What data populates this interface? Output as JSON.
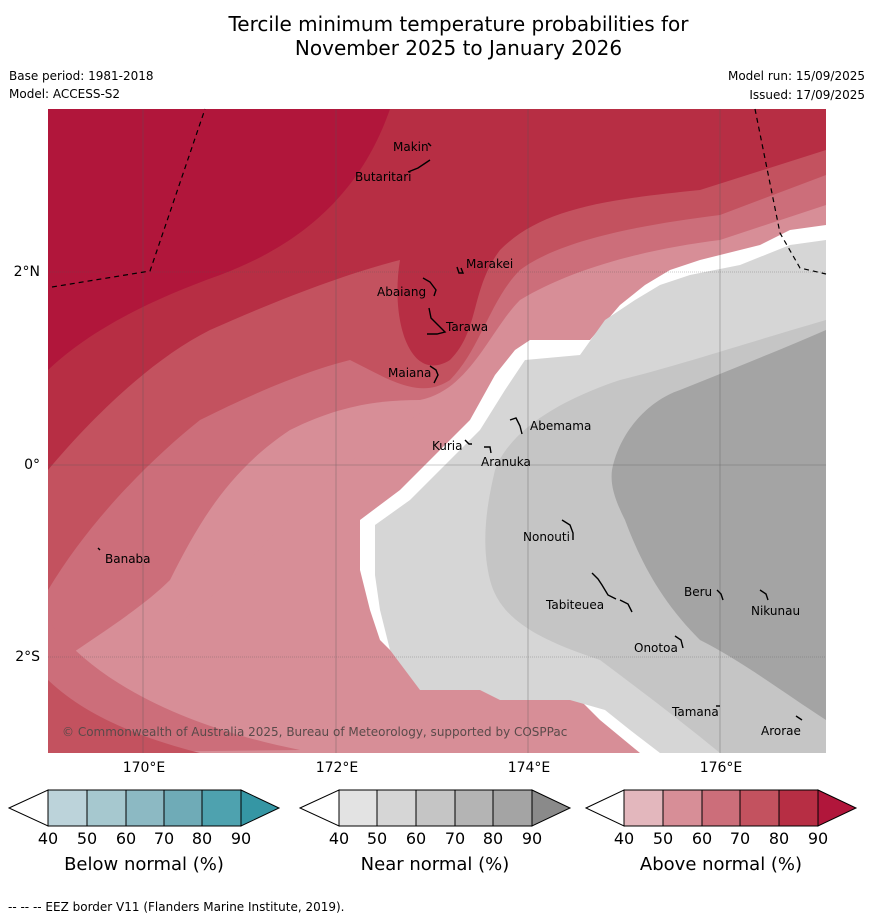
{
  "title_line1": "Tercile minimum temperature probabilities for",
  "title_line2": "November 2025 to January 2026",
  "base_period": "Base period: 1981-2018",
  "model": "Model: ACCESS-S2",
  "model_run": "Model run: 15/09/2025",
  "issued": "Issued: 17/09/2025",
  "copyright": "© Commonwealth of Australia 2025, Bureau of Meteorology, supported by COSPPac",
  "footer": "--  --  -- EEZ border V11 (Flanders Marine Institute, 2019).",
  "lat_labels": [
    "2°N",
    "0°",
    "2°S"
  ],
  "lon_labels": [
    "170°E",
    "172°E",
    "174°E",
    "176°E"
  ],
  "places": [
    {
      "name": "Makin"
    },
    {
      "name": "Butaritari"
    },
    {
      "name": "Marakei"
    },
    {
      "name": "Abaiang"
    },
    {
      "name": "Tarawa"
    },
    {
      "name": "Maiana"
    },
    {
      "name": "Abemama"
    },
    {
      "name": "Kuria"
    },
    {
      "name": "Aranuka"
    },
    {
      "name": "Banaba"
    },
    {
      "name": "Nonouti"
    },
    {
      "name": "Beru"
    },
    {
      "name": "Nikunau"
    },
    {
      "name": "Tabiteuea"
    },
    {
      "name": "Onotoa"
    },
    {
      "name": "Tamana"
    },
    {
      "name": "Arorae"
    }
  ],
  "colorbars": [
    {
      "title": "Below normal (%)",
      "ticks": [
        "40",
        "50",
        "60",
        "70",
        "80",
        "90"
      ],
      "colors": [
        "#bcd3da",
        "#a6c8cf",
        "#8cb9c3",
        "#6fabb7",
        "#4ea2af",
        "#3596a4"
      ]
    },
    {
      "title": "Near normal (%)",
      "ticks": [
        "40",
        "50",
        "60",
        "70",
        "80",
        "90"
      ],
      "colors": [
        "#e3e3e3",
        "#d6d6d6",
        "#c5c5c5",
        "#b4b4b4",
        "#a4a4a4",
        "#8a8a8a"
      ]
    },
    {
      "title": "Above normal (%)",
      "ticks": [
        "40",
        "50",
        "60",
        "70",
        "80",
        "90"
      ],
      "colors": [
        "#e3b7bd",
        "#d78e97",
        "#cc6e7a",
        "#c3525f",
        "#b72e44",
        "#b1163b"
      ]
    }
  ]
}
